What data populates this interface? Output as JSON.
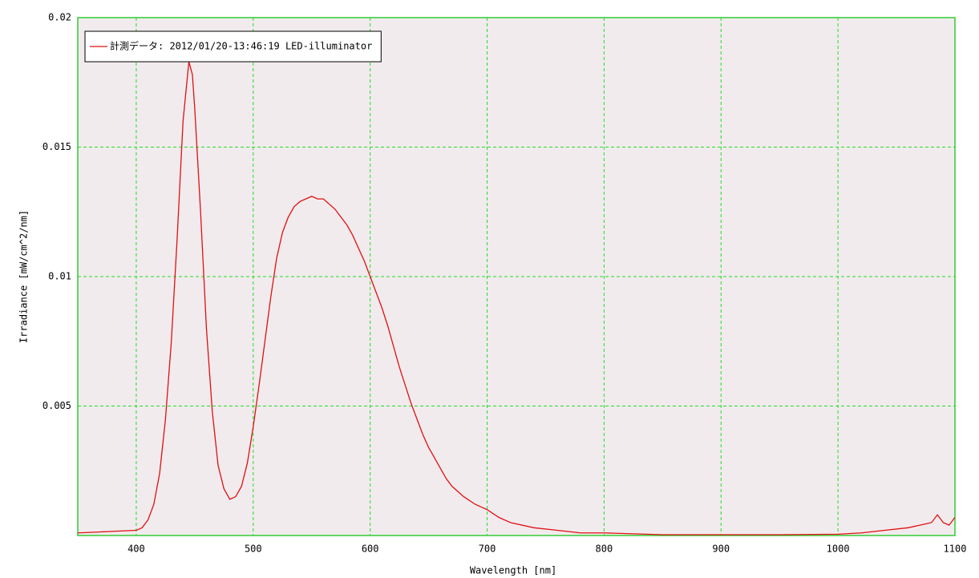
{
  "chart_data": {
    "type": "line",
    "x_label": "Wavelength [nm]",
    "y_label": "Irradiance [mW/cm^2/nm]",
    "x": [
      350,
      375,
      400,
      405,
      410,
      415,
      420,
      425,
      430,
      435,
      440,
      445,
      448,
      450,
      455,
      460,
      465,
      470,
      475,
      480,
      485,
      490,
      495,
      500,
      505,
      510,
      515,
      520,
      525,
      530,
      535,
      540,
      545,
      550,
      555,
      560,
      565,
      570,
      575,
      580,
      585,
      590,
      595,
      600,
      605,
      610,
      615,
      620,
      625,
      630,
      635,
      640,
      645,
      650,
      655,
      660,
      665,
      670,
      680,
      690,
      700,
      710,
      720,
      740,
      760,
      780,
      800,
      850,
      900,
      950,
      1000,
      1020,
      1040,
      1060,
      1070,
      1080,
      1085,
      1090,
      1095,
      1100
    ],
    "series": [
      {
        "name": "計測データ: 2012/01/20-13:46:19 LED-illuminator",
        "color": "#e01010",
        "values": [
          0.0001,
          0.00015,
          0.0002,
          0.0003,
          0.0006,
          0.0012,
          0.0024,
          0.0045,
          0.0075,
          0.0115,
          0.016,
          0.0183,
          0.0178,
          0.0165,
          0.0125,
          0.008,
          0.0048,
          0.0027,
          0.0018,
          0.0014,
          0.0015,
          0.0019,
          0.0028,
          0.0042,
          0.0058,
          0.0075,
          0.0092,
          0.0107,
          0.0117,
          0.0123,
          0.0127,
          0.0129,
          0.013,
          0.0131,
          0.013,
          0.013,
          0.0128,
          0.0126,
          0.0123,
          0.012,
          0.0116,
          0.0111,
          0.0106,
          0.01,
          0.0094,
          0.0088,
          0.0081,
          0.0073,
          0.0065,
          0.0058,
          0.0051,
          0.0045,
          0.0039,
          0.0034,
          0.003,
          0.0026,
          0.0022,
          0.0019,
          0.0015,
          0.0012,
          0.001,
          0.0007,
          0.0005,
          0.0003,
          0.0002,
          0.0001,
          0.0001,
          3e-05,
          3e-05,
          3e-05,
          5e-05,
          0.0001,
          0.0002,
          0.0003,
          0.0004,
          0.0005,
          0.0008,
          0.0005,
          0.0004,
          0.0007
        ]
      }
    ],
    "xlim": [
      350,
      1100
    ],
    "xticks": [
      400,
      500,
      600,
      700,
      800,
      900,
      1000,
      1100
    ],
    "ylim": [
      0,
      0.02
    ],
    "yticks": [
      0.005,
      0.01,
      0.015,
      0.02
    ],
    "grid": true,
    "legend": "upper-left",
    "background": "#f1ebee",
    "frame_color": "#33cc33"
  }
}
